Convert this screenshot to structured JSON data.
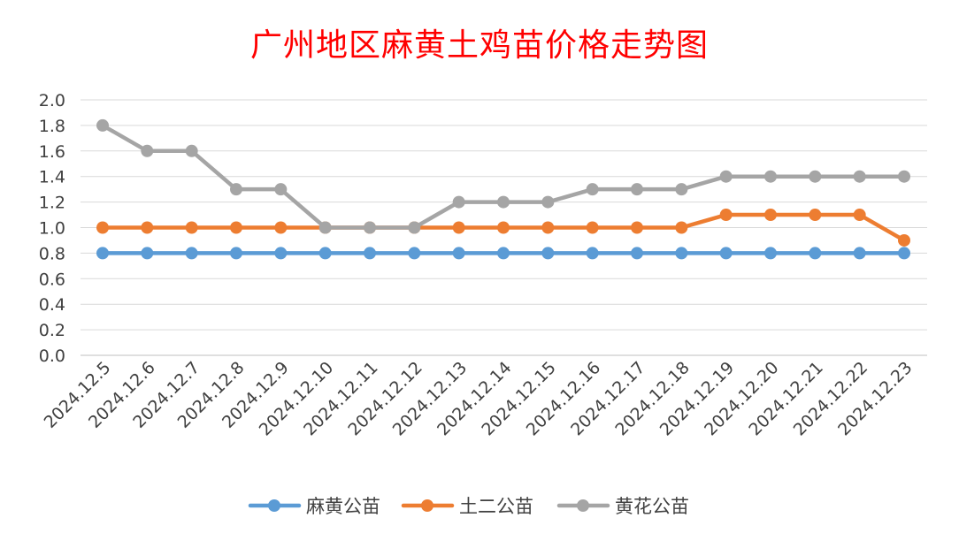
{
  "chart_data": {
    "type": "line",
    "title": "广州地区麻黄土鸡苗价格走势图",
    "xlabel": "",
    "ylabel": "",
    "ylim": [
      0,
      2.0
    ],
    "yticks": [
      "0.0",
      "0.2",
      "0.4",
      "0.6",
      "0.8",
      "1.0",
      "1.2",
      "1.4",
      "1.6",
      "1.8",
      "2.0"
    ],
    "categories": [
      "2024.12.5",
      "2024.12.6",
      "2024.12.7",
      "2024.12.8",
      "2024.12.9",
      "2024.12.10",
      "2024.12.11",
      "2024.12.12",
      "2024.12.13",
      "2024.12.14",
      "2024.12.15",
      "2024.12.16",
      "2024.12.17",
      "2024.12.18",
      "2024.12.19",
      "2024.12.20",
      "2024.12.21",
      "2024.12.22",
      "2024.12.23"
    ],
    "series": [
      {
        "name": "麻黄公苗",
        "color": "#5b9bd5",
        "values": [
          0.8,
          0.8,
          0.8,
          0.8,
          0.8,
          0.8,
          0.8,
          0.8,
          0.8,
          0.8,
          0.8,
          0.8,
          0.8,
          0.8,
          0.8,
          0.8,
          0.8,
          0.8,
          0.8
        ]
      },
      {
        "name": "土二公苗",
        "color": "#ed7d31",
        "values": [
          1.0,
          1.0,
          1.0,
          1.0,
          1.0,
          1.0,
          1.0,
          1.0,
          1.0,
          1.0,
          1.0,
          1.0,
          1.0,
          1.0,
          1.1,
          1.1,
          1.1,
          1.1,
          0.9
        ]
      },
      {
        "name": "黄花公苗",
        "color": "#a5a5a5",
        "values": [
          1.8,
          1.6,
          1.6,
          1.3,
          1.3,
          1.0,
          1.0,
          1.0,
          1.2,
          1.2,
          1.2,
          1.3,
          1.3,
          1.3,
          1.4,
          1.4,
          1.4,
          1.4,
          1.4
        ]
      }
    ],
    "grid": true,
    "legend": "bottom"
  }
}
